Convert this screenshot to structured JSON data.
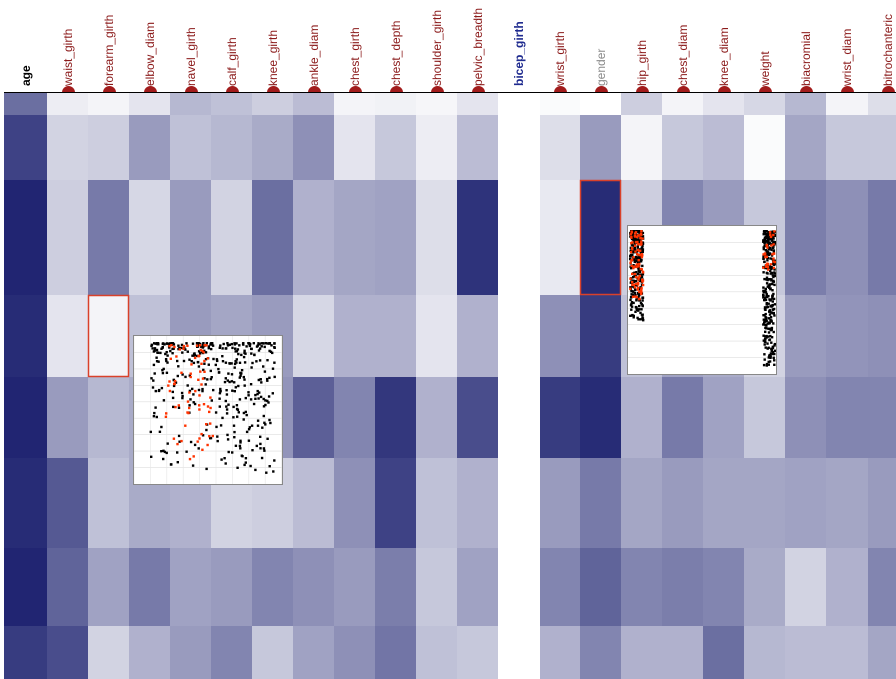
{
  "chart_data": {
    "type": "heatmap",
    "columns": [
      {
        "name": "age",
        "style": "bold"
      },
      {
        "name": "waist_girth"
      },
      {
        "name": "forearm_girth"
      },
      {
        "name": "elbow_diam"
      },
      {
        "name": "navel_girth"
      },
      {
        "name": "calf_girth"
      },
      {
        "name": "knee_girth"
      },
      {
        "name": "ankle_diam"
      },
      {
        "name": "chest_girth"
      },
      {
        "name": "chest_depth"
      },
      {
        "name": "shoulder_girth"
      },
      {
        "name": "pelvic_breadth"
      },
      {
        "name": "bicep_girth",
        "style": "selected"
      },
      {
        "name": "wrist_girth"
      },
      {
        "name": "gender",
        "style": "muted"
      },
      {
        "name": "hip_girth"
      },
      {
        "name": "chest_diam"
      },
      {
        "name": "knee_diam"
      },
      {
        "name": "weight"
      },
      {
        "name": "biacromial"
      },
      {
        "name": "wrist_diam"
      },
      {
        "name": "bitrochanteric"
      }
    ],
    "values": [
      [
        0.65,
        0.08,
        0.05,
        0.12,
        0.32,
        0.28,
        0.22,
        0.3,
        0.05,
        0.06,
        0.04,
        0.12,
        0.0,
        0.02,
        0.0,
        0.22,
        0.05,
        0.12,
        0.18,
        0.32,
        0.05,
        0.15
      ],
      [
        0.85,
        0.2,
        0.22,
        0.45,
        0.28,
        0.32,
        0.38,
        0.5,
        0.12,
        0.25,
        0.08,
        0.3,
        0.0,
        0.15,
        0.45,
        0.05,
        0.25,
        0.3,
        0.02,
        0.4,
        0.25,
        0.25
      ],
      [
        0.98,
        0.22,
        0.6,
        0.18,
        0.45,
        0.2,
        0.65,
        0.35,
        0.4,
        0.42,
        0.15,
        0.92,
        0.0,
        0.1,
        0.95,
        0.22,
        0.55,
        0.45,
        0.25,
        0.58,
        0.5,
        0.6
      ],
      [
        0.95,
        0.12,
        0.05,
        0.28,
        0.45,
        0.4,
        0.45,
        0.18,
        0.35,
        0.35,
        0.12,
        0.35,
        0.0,
        0.5,
        0.88,
        0.28,
        0.42,
        0.38,
        0.2,
        0.45,
        0.48,
        0.5
      ],
      [
        0.98,
        0.45,
        0.32,
        0.38,
        0.48,
        0.4,
        0.48,
        0.72,
        0.55,
        0.9,
        0.35,
        0.8,
        0.0,
        0.88,
        0.95,
        0.35,
        0.6,
        0.42,
        0.25,
        0.5,
        0.55,
        0.55
      ],
      [
        0.95,
        0.75,
        0.28,
        0.38,
        0.35,
        0.2,
        0.22,
        0.3,
        0.5,
        0.85,
        0.28,
        0.35,
        0.0,
        0.45,
        0.6,
        0.4,
        0.45,
        0.4,
        0.4,
        0.42,
        0.4,
        0.45
      ],
      [
        0.98,
        0.7,
        0.42,
        0.6,
        0.42,
        0.45,
        0.55,
        0.5,
        0.45,
        0.58,
        0.25,
        0.42,
        0.0,
        0.55,
        0.7,
        0.55,
        0.58,
        0.55,
        0.38,
        0.2,
        0.35,
        0.55
      ],
      [
        0.88,
        0.8,
        0.2,
        0.35,
        0.45,
        0.55,
        0.25,
        0.42,
        0.5,
        0.62,
        0.28,
        0.25,
        0.0,
        0.35,
        0.55,
        0.35,
        0.35,
        0.65,
        0.32,
        0.3,
        0.3,
        0.4
      ]
    ],
    "highlighted_cells": [
      {
        "row": 3,
        "column": "forearm_girth"
      },
      {
        "row": 2,
        "column": "gender"
      }
    ],
    "scatter_insets": [
      {
        "near_column": "forearm_girth",
        "points": "black and red dots, dense cloud at top, sparse toward bottom"
      },
      {
        "near_column": "gender",
        "points": "two vertical bands of black and red dots at left and right edges"
      }
    ],
    "colors": {
      "cell_low": "#ffffff",
      "cell_high": "#1c216f",
      "header_dot": "#a21c1c",
      "label_default": "#8b1a1a",
      "label_selected": "#1f2b8f",
      "label_muted": "#8a8a8a",
      "label_bold": "#000000",
      "highlight_border": "#d9412a",
      "scatter_black": "#000000",
      "scatter_red": "#ff3300"
    }
  }
}
